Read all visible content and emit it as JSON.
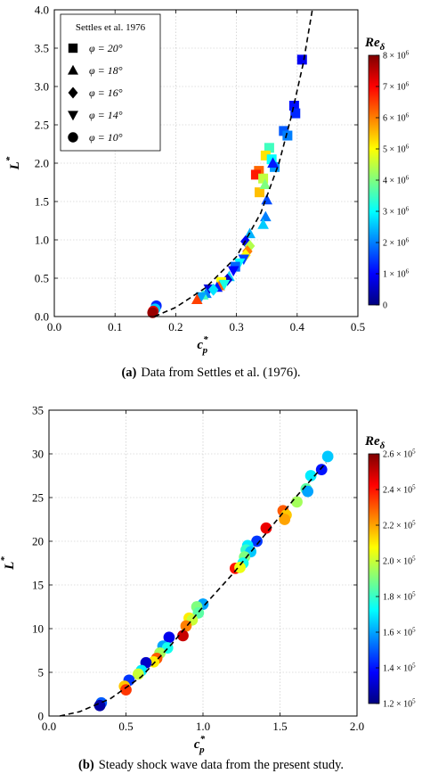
{
  "colors": {
    "cmap": [
      "#00007f",
      "#0000ff",
      "#007fff",
      "#00ffff",
      "#7fff7f",
      "#ffff00",
      "#ff7f00",
      "#ff0000",
      "#7f0000"
    ],
    "curve": "#000000",
    "grid": "#bfbfbf"
  },
  "chart_data": [
    {
      "type": "scatter",
      "caption_tag": "(a)",
      "caption_text": "Data from Settles et al. (1976).",
      "xlabel_base": "c",
      "xlabel_sub": "p",
      "xlabel_sup": "*",
      "ylabel_base": "L",
      "ylabel_sup": "*",
      "xlim": [
        0.0,
        0.5
      ],
      "ylim": [
        0.0,
        4.0
      ],
      "xticks": [
        "0.0",
        "0.1",
        "0.2",
        "0.3",
        "0.4",
        "0.5"
      ],
      "yticks": [
        "0.0",
        "0.5",
        "1.0",
        "1.5",
        "2.0",
        "2.5",
        "3.0",
        "3.5",
        "4.0"
      ],
      "grid": true,
      "legend": {
        "title": "Settles et al. 1976",
        "position": "top-left",
        "entries": [
          {
            "marker": "square",
            "label": "φ = 20°"
          },
          {
            "marker": "triangle-up",
            "label": "φ = 18°"
          },
          {
            "marker": "diamond",
            "label": "φ = 16°"
          },
          {
            "marker": "triangle-down",
            "label": "φ = 14°"
          },
          {
            "marker": "circle",
            "label": "φ = 10°"
          }
        ]
      },
      "colorbar": {
        "title_base": "Re",
        "title_sub": "δ",
        "range": [
          0,
          8000000
        ],
        "ticks": [
          {
            "value": 0,
            "mant": "0",
            "exp": ""
          },
          {
            "value": 1000000,
            "mant": "1 × 10",
            "exp": "6"
          },
          {
            "value": 2000000,
            "mant": "2 × 10",
            "exp": "6"
          },
          {
            "value": 3000000,
            "mant": "3 × 10",
            "exp": "6"
          },
          {
            "value": 4000000,
            "mant": "4 × 10",
            "exp": "6"
          },
          {
            "value": 5000000,
            "mant": "5 × 10",
            "exp": "6"
          },
          {
            "value": 6000000,
            "mant": "6 × 10",
            "exp": "6"
          },
          {
            "value": 7000000,
            "mant": "7 × 10",
            "exp": "6"
          },
          {
            "value": 8000000,
            "mant": "8 × 10",
            "exp": "6"
          }
        ]
      },
      "curve": {
        "style": "dashed",
        "points": [
          [
            0.165,
            0.0
          ],
          [
            0.2,
            0.12
          ],
          [
            0.25,
            0.38
          ],
          [
            0.3,
            0.78
          ],
          [
            0.34,
            1.35
          ],
          [
            0.37,
            2.0
          ],
          [
            0.39,
            2.6
          ],
          [
            0.41,
            3.3
          ],
          [
            0.425,
            4.0
          ]
        ]
      },
      "points": [
        {
          "x": 0.408,
          "y": 3.35,
          "m": "square",
          "re": 900000
        },
        {
          "x": 0.395,
          "y": 2.75,
          "m": "square",
          "re": 1100000
        },
        {
          "x": 0.397,
          "y": 2.65,
          "m": "square",
          "re": 1300000
        },
        {
          "x": 0.378,
          "y": 2.42,
          "m": "square",
          "re": 1700000
        },
        {
          "x": 0.384,
          "y": 2.36,
          "m": "square",
          "re": 2000000
        },
        {
          "x": 0.354,
          "y": 2.2,
          "m": "square",
          "re": 3500000
        },
        {
          "x": 0.348,
          "y": 2.1,
          "m": "square",
          "re": 5200000
        },
        {
          "x": 0.358,
          "y": 2.05,
          "m": "square",
          "re": 3000000
        },
        {
          "x": 0.363,
          "y": 1.95,
          "m": "square",
          "re": 2200000
        },
        {
          "x": 0.337,
          "y": 1.9,
          "m": "square",
          "re": 6200000
        },
        {
          "x": 0.332,
          "y": 1.85,
          "m": "square",
          "re": 6800000
        },
        {
          "x": 0.344,
          "y": 1.8,
          "m": "square",
          "re": 4500000
        },
        {
          "x": 0.338,
          "y": 1.62,
          "m": "square",
          "re": 5500000
        },
        {
          "x": 0.347,
          "y": 1.72,
          "m": "triangle-up",
          "re": 4000000
        },
        {
          "x": 0.36,
          "y": 2.0,
          "m": "triangle-up",
          "re": 1200000
        },
        {
          "x": 0.35,
          "y": 1.52,
          "m": "triangle-up",
          "re": 1600000
        },
        {
          "x": 0.348,
          "y": 1.3,
          "m": "triangle-up",
          "re": 2000000
        },
        {
          "x": 0.344,
          "y": 1.2,
          "m": "triangle-up",
          "re": 2600000
        },
        {
          "x": 0.322,
          "y": 1.08,
          "m": "triangle-up",
          "re": 2400000
        },
        {
          "x": 0.315,
          "y": 0.98,
          "m": "diamond",
          "re": 900000
        },
        {
          "x": 0.322,
          "y": 0.92,
          "m": "diamond",
          "re": 4400000
        },
        {
          "x": 0.318,
          "y": 0.85,
          "m": "diamond",
          "re": 6000000
        },
        {
          "x": 0.315,
          "y": 0.8,
          "m": "diamond",
          "re": 5000000
        },
        {
          "x": 0.312,
          "y": 0.75,
          "m": "triangle-down",
          "re": 1500000
        },
        {
          "x": 0.305,
          "y": 0.7,
          "m": "triangle-down",
          "re": 3000000
        },
        {
          "x": 0.298,
          "y": 0.65,
          "m": "square",
          "re": 1800000
        },
        {
          "x": 0.295,
          "y": 0.6,
          "m": "triangle-down",
          "re": 1000000
        },
        {
          "x": 0.288,
          "y": 0.52,
          "m": "triangle-up",
          "re": 2600000
        },
        {
          "x": 0.285,
          "y": 0.48,
          "m": "diamond",
          "re": 600000
        },
        {
          "x": 0.275,
          "y": 0.45,
          "m": "square",
          "re": 5000000
        },
        {
          "x": 0.272,
          "y": 0.4,
          "m": "triangle-up",
          "re": 6200000
        },
        {
          "x": 0.28,
          "y": 0.42,
          "m": "triangle-down",
          "re": 3200000
        },
        {
          "x": 0.268,
          "y": 0.38,
          "m": "triangle-up",
          "re": 1200000
        },
        {
          "x": 0.255,
          "y": 0.36,
          "m": "triangle-down",
          "re": 700000
        },
        {
          "x": 0.262,
          "y": 0.35,
          "m": "diamond",
          "re": 2800000
        },
        {
          "x": 0.25,
          "y": 0.3,
          "m": "triangle-up",
          "re": 2000000
        },
        {
          "x": 0.245,
          "y": 0.28,
          "m": "triangle-up",
          "re": 3500000
        },
        {
          "x": 0.242,
          "y": 0.26,
          "m": "triangle-down",
          "re": 2300000
        },
        {
          "x": 0.235,
          "y": 0.22,
          "m": "triangle-up",
          "re": 6500000
        },
        {
          "x": 0.168,
          "y": 0.14,
          "m": "circle",
          "re": 1300000
        },
        {
          "x": 0.166,
          "y": 0.1,
          "m": "circle",
          "re": 2600000
        },
        {
          "x": 0.163,
          "y": 0.07,
          "m": "circle",
          "re": 7200000
        },
        {
          "x": 0.162,
          "y": 0.05,
          "m": "circle",
          "re": 7800000
        }
      ]
    },
    {
      "type": "scatter",
      "caption_tag": "(b)",
      "caption_text": "Steady shock wave data from the present study.",
      "xlabel_base": "c",
      "xlabel_sub": "p",
      "xlabel_sup": "*",
      "ylabel_base": "L",
      "ylabel_sup": "*",
      "xlim": [
        0.0,
        2.0
      ],
      "ylim": [
        0,
        35
      ],
      "xticks": [
        "0.0",
        "0.5",
        "1.0",
        "1.5",
        "2.0"
      ],
      "yticks": [
        "0",
        "5",
        "10",
        "15",
        "20",
        "25",
        "30",
        "35"
      ],
      "grid": true,
      "colorbar": {
        "title_base": "Re",
        "title_sub": "δ",
        "range": [
          120000,
          260000
        ],
        "ticks": [
          {
            "value": 120000,
            "mant": "1.2 × 10",
            "exp": "5"
          },
          {
            "value": 140000,
            "mant": "1.4 × 10",
            "exp": "5"
          },
          {
            "value": 160000,
            "mant": "1.6 × 10",
            "exp": "5"
          },
          {
            "value": 180000,
            "mant": "1.8 × 10",
            "exp": "5"
          },
          {
            "value": 200000,
            "mant": "2.0 × 10",
            "exp": "5"
          },
          {
            "value": 220000,
            "mant": "2.2 × 10",
            "exp": "5"
          },
          {
            "value": 240000,
            "mant": "2.4 × 10",
            "exp": "5"
          },
          {
            "value": 260000,
            "mant": "2.6 × 10",
            "exp": "5"
          }
        ]
      },
      "curve": {
        "style": "dashed",
        "points": [
          [
            0.07,
            0.0
          ],
          [
            0.2,
            0.5
          ],
          [
            0.4,
            2.0
          ],
          [
            0.6,
            4.5
          ],
          [
            0.8,
            8.3
          ],
          [
            1.0,
            12.5
          ],
          [
            1.2,
            16.4
          ],
          [
            1.4,
            20.7
          ],
          [
            1.6,
            25.0
          ],
          [
            1.8,
            29.0
          ]
        ]
      },
      "points": [
        {
          "x": 1.81,
          "y": 29.7,
          "re": 165000
        },
        {
          "x": 1.77,
          "y": 28.2,
          "re": 140000
        },
        {
          "x": 1.7,
          "y": 27.5,
          "re": 170000
        },
        {
          "x": 1.67,
          "y": 26.0,
          "re": 185000
        },
        {
          "x": 1.68,
          "y": 25.7,
          "re": 160000
        },
        {
          "x": 1.61,
          "y": 24.5,
          "re": 195000
        },
        {
          "x": 1.52,
          "y": 23.5,
          "re": 230000
        },
        {
          "x": 1.54,
          "y": 23.0,
          "re": 215000
        },
        {
          "x": 1.53,
          "y": 22.5,
          "re": 220000
        },
        {
          "x": 1.41,
          "y": 21.5,
          "re": 245000
        },
        {
          "x": 1.35,
          "y": 20.0,
          "re": 145000
        },
        {
          "x": 1.29,
          "y": 19.5,
          "re": 170000
        },
        {
          "x": 1.28,
          "y": 19.0,
          "re": 180000
        },
        {
          "x": 1.31,
          "y": 18.8,
          "re": 165000
        },
        {
          "x": 1.27,
          "y": 18.2,
          "re": 190000
        },
        {
          "x": 1.26,
          "y": 17.5,
          "re": 175000
        },
        {
          "x": 1.21,
          "y": 16.9,
          "re": 240000
        },
        {
          "x": 1.24,
          "y": 17.0,
          "re": 205000
        },
        {
          "x": 1.0,
          "y": 12.8,
          "re": 160000
        },
        {
          "x": 0.96,
          "y": 12.5,
          "re": 190000
        },
        {
          "x": 0.97,
          "y": 11.8,
          "re": 185000
        },
        {
          "x": 0.91,
          "y": 11.2,
          "re": 210000
        },
        {
          "x": 0.93,
          "y": 11.0,
          "re": 200000
        },
        {
          "x": 0.89,
          "y": 10.3,
          "re": 225000
        },
        {
          "x": 0.87,
          "y": 9.2,
          "re": 250000
        },
        {
          "x": 0.78,
          "y": 9.0,
          "re": 135000
        },
        {
          "x": 0.74,
          "y": 8.0,
          "re": 160000
        },
        {
          "x": 0.77,
          "y": 7.8,
          "re": 175000
        },
        {
          "x": 0.72,
          "y": 7.2,
          "re": 195000
        },
        {
          "x": 0.7,
          "y": 6.6,
          "re": 230000
        },
        {
          "x": 0.68,
          "y": 6.2,
          "re": 210000
        },
        {
          "x": 0.63,
          "y": 6.1,
          "re": 130000
        },
        {
          "x": 0.6,
          "y": 5.2,
          "re": 170000
        },
        {
          "x": 0.58,
          "y": 4.8,
          "re": 200000
        },
        {
          "x": 0.52,
          "y": 4.1,
          "re": 145000
        },
        {
          "x": 0.49,
          "y": 3.4,
          "re": 215000
        },
        {
          "x": 0.5,
          "y": 3.0,
          "re": 235000
        },
        {
          "x": 0.34,
          "y": 1.5,
          "re": 150000
        },
        {
          "x": 0.33,
          "y": 1.2,
          "re": 125000
        }
      ]
    }
  ]
}
